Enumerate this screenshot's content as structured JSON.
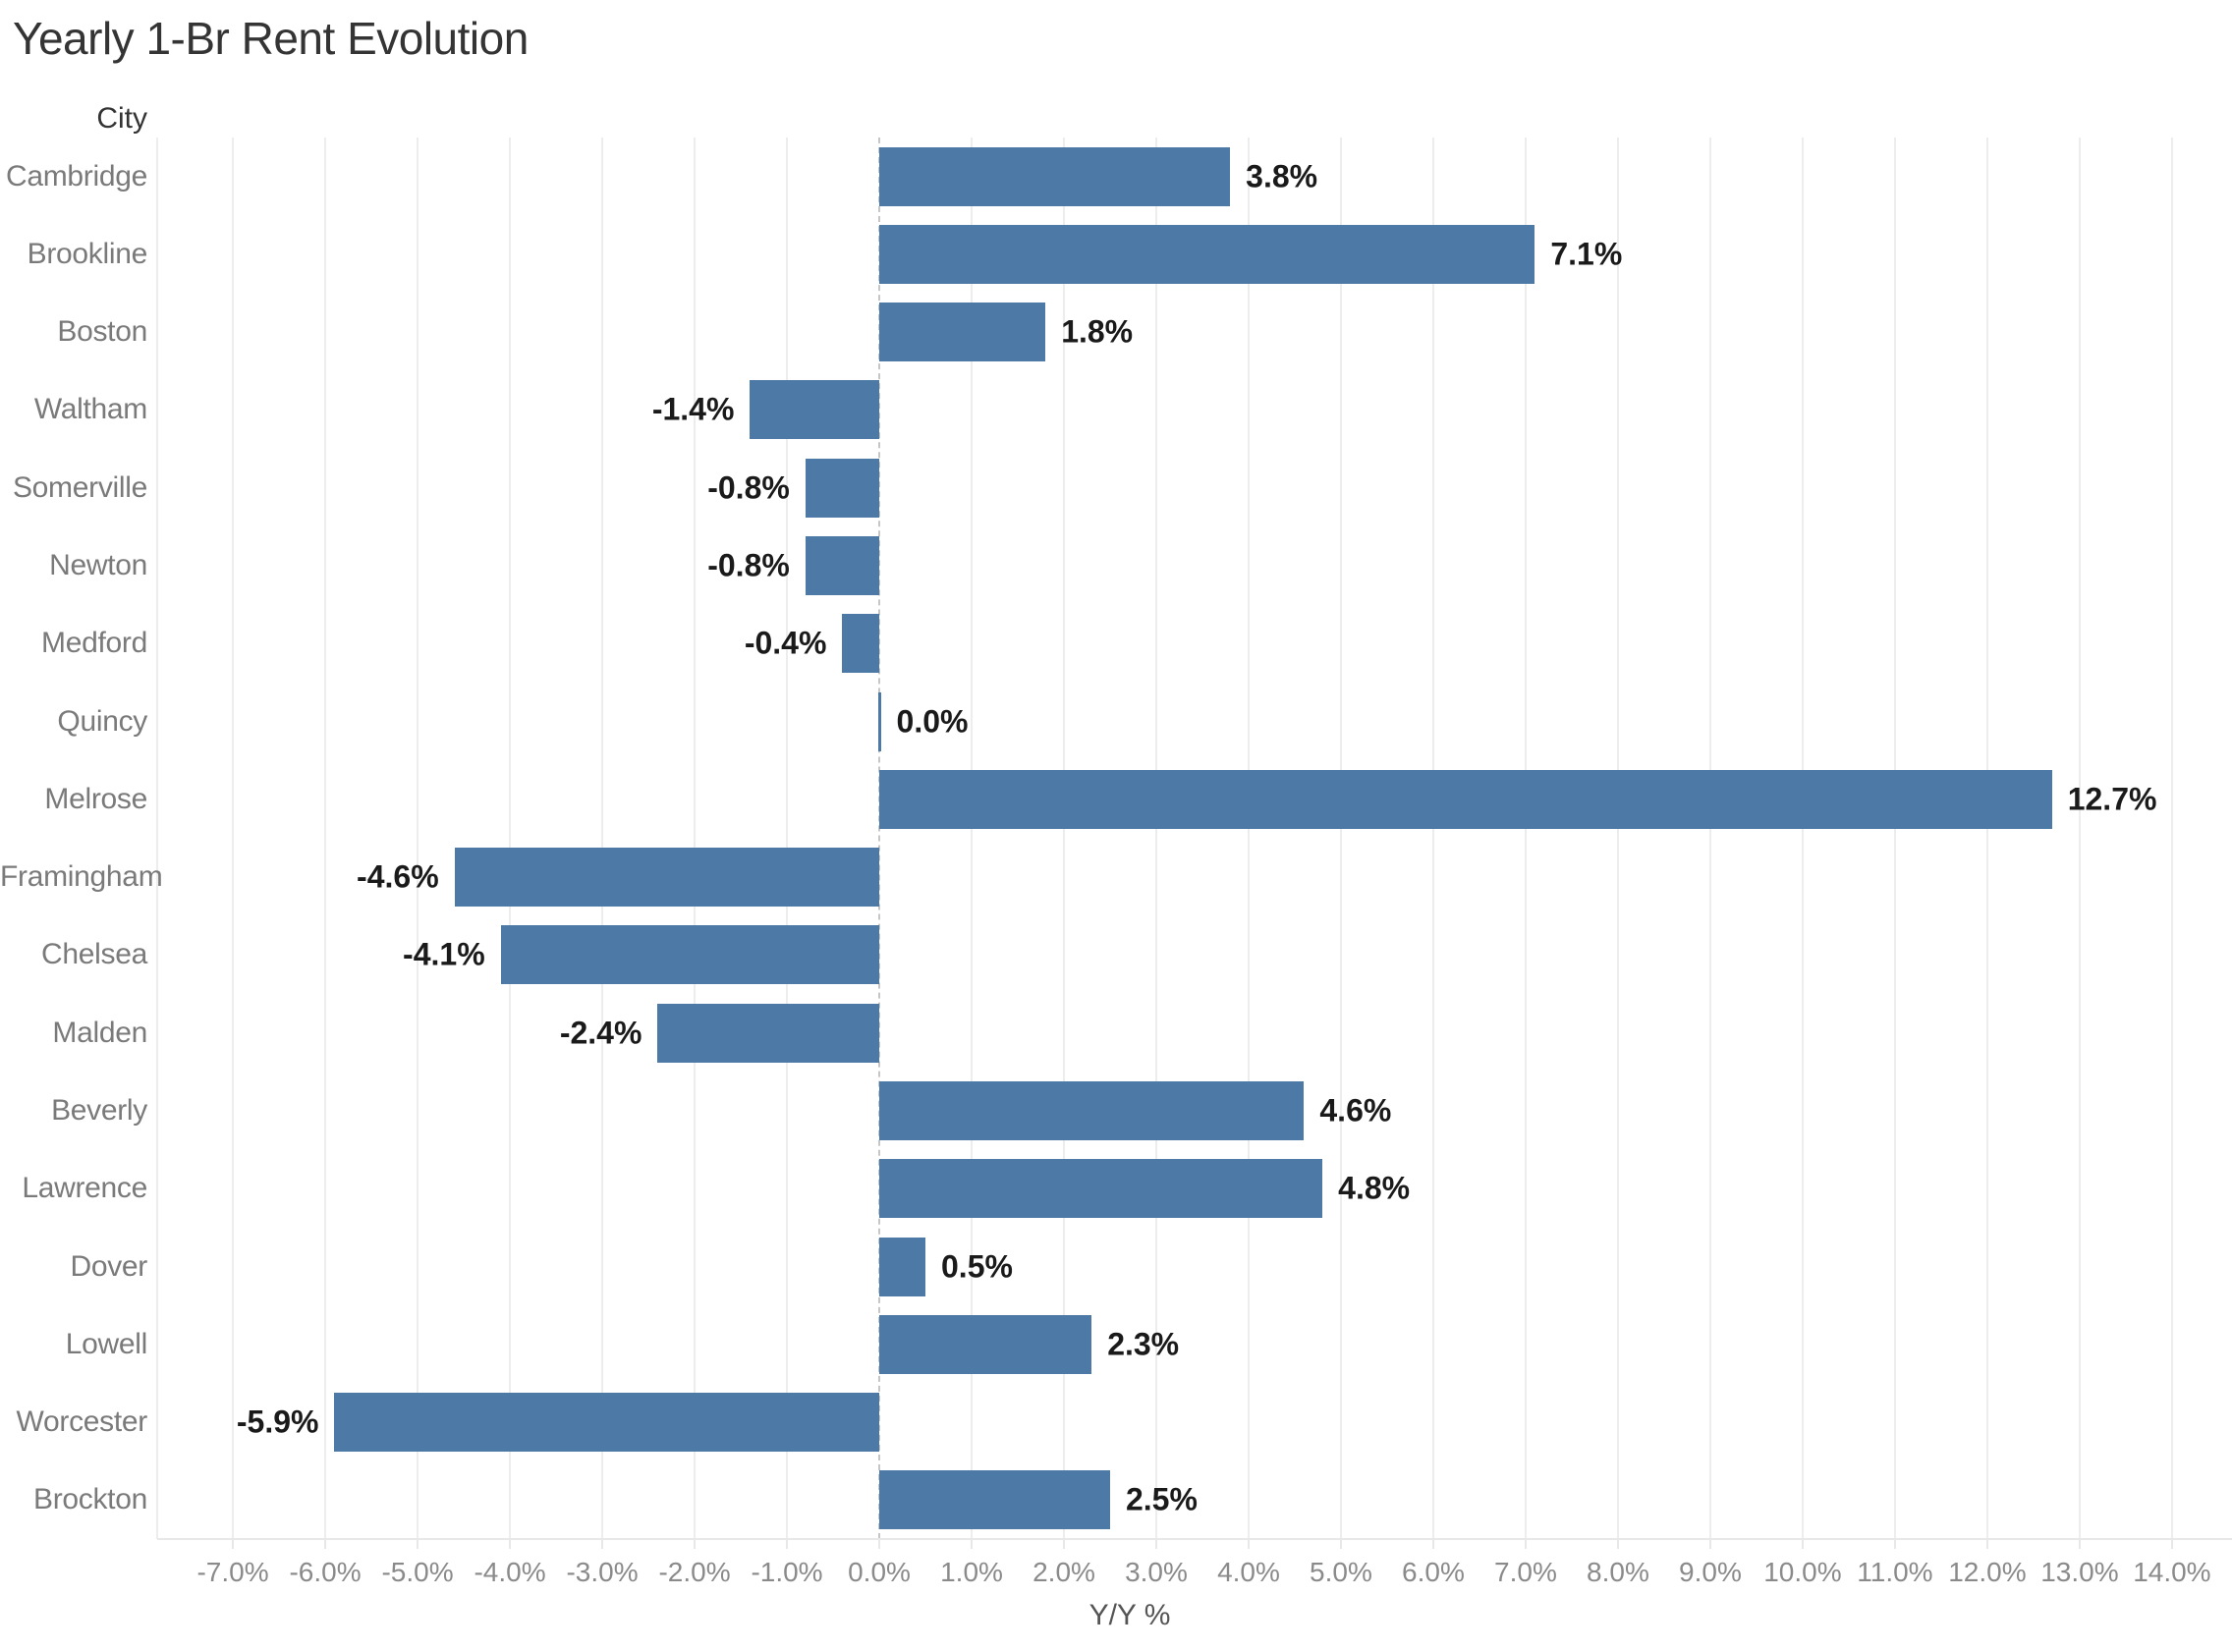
{
  "chart_data": {
    "type": "bar",
    "orientation": "horizontal",
    "title": "Yearly 1-Br Rent Evolution",
    "col_header": "City",
    "xlabel": "Y/Y %",
    "categories": [
      "Cambridge",
      "Brookline",
      "Boston",
      "Waltham",
      "Somerville",
      "Newton",
      "Medford",
      "Quincy",
      "Melrose",
      "Framingham",
      "Chelsea",
      "Malden",
      "Beverly",
      "Lawrence",
      "Dover",
      "Lowell",
      "Worcester",
      "Brockton"
    ],
    "values": [
      3.8,
      7.1,
      1.8,
      -1.4,
      -0.8,
      -0.8,
      -0.4,
      0.0,
      12.7,
      -4.6,
      -4.1,
      -2.4,
      4.6,
      4.8,
      0.5,
      2.3,
      -5.9,
      2.5
    ],
    "value_labels": [
      "3.8%",
      "7.1%",
      "1.8%",
      "-1.4%",
      "-0.8%",
      "-0.8%",
      "-0.4%",
      "0.0%",
      "12.7%",
      "-4.6%",
      "-4.1%",
      "-2.4%",
      "4.6%",
      "4.8%",
      "0.5%",
      "2.3%",
      "-5.9%",
      "2.5%"
    ],
    "x_ticks": [
      "-7.0%",
      "-6.0%",
      "-5.0%",
      "-4.0%",
      "-3.0%",
      "-2.0%",
      "-1.0%",
      "0.0%",
      "1.0%",
      "2.0%",
      "3.0%",
      "4.0%",
      "5.0%",
      "6.0%",
      "7.0%",
      "8.0%",
      "9.0%",
      "10.0%",
      "11.0%",
      "12.0%",
      "13.0%",
      "14.0%"
    ],
    "xlim": [
      -7.82,
      14.65
    ],
    "grid": true,
    "legend": "none",
    "colors": {
      "bar": "#4d79a7",
      "gridline": "#ededed",
      "zero_line": "#c6c6c6",
      "axis_line": "#e8e8e8",
      "city_label": "#7a7a7a",
      "tick_label": "#8a8a8a",
      "value_label": "#1a1a1a",
      "title": "#343434"
    }
  }
}
